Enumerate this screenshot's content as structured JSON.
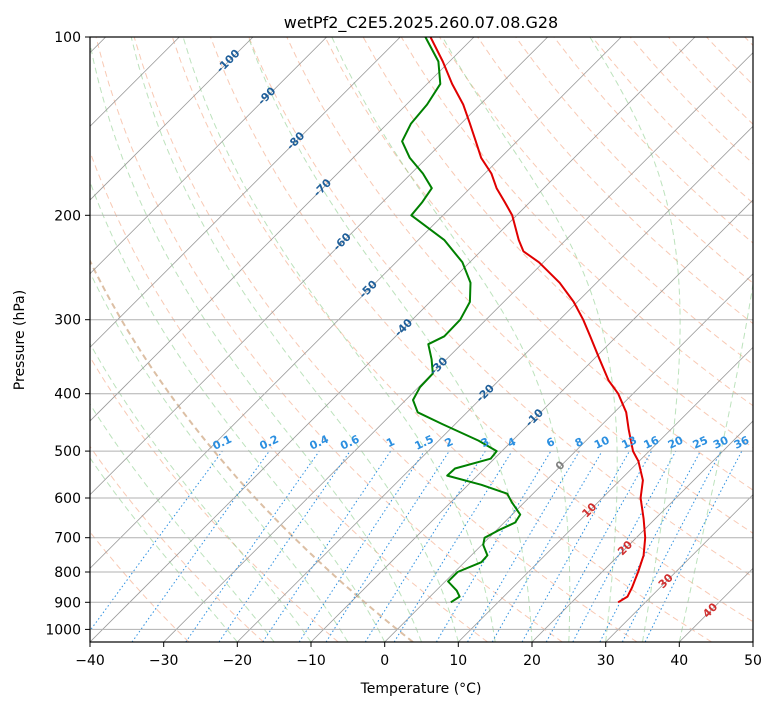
{
  "chart_data": {
    "type": "skew-t",
    "title": "wetPf2_C2E5.2025.260.07.08.G28",
    "xlabel": "Temperature (°C)",
    "ylabel": "Pressure (hPa)",
    "xlim": [
      -40,
      50
    ],
    "ylim": [
      1050,
      100
    ],
    "x_ticks": [
      -40,
      -30,
      -20,
      -10,
      0,
      10,
      20,
      30,
      40,
      50
    ],
    "y_ticks": [
      100,
      200,
      300,
      400,
      500,
      600,
      700,
      800,
      900,
      1000
    ],
    "colors": {
      "temperature": "#e00000",
      "dewpoint": "#008000",
      "isotherm": "#1f5f9a",
      "mixing_ratio": "#2b8fe0",
      "dry_adiabat": "#f4a582",
      "moist_adiabat": "#8fcf8f",
      "grid": "#b0b0b0",
      "isotherm_warm": "#d03030",
      "isotherm_zero": "#808080"
    },
    "isotherm_labels": [
      "-100",
      "-90",
      "-80",
      "-70",
      "-60",
      "-50",
      "-40",
      "-30",
      "-20",
      "-10",
      "0",
      "10",
      "20",
      "30",
      "40"
    ],
    "mixing_ratio_labels": [
      "0.1",
      "0.2",
      "0.4",
      "0.6",
      "1",
      "1.5",
      "2",
      "3",
      "4",
      "6",
      "8",
      "10",
      "13",
      "16",
      "20",
      "25",
      "30",
      "36"
    ],
    "series": [
      {
        "name": "Temperature",
        "points": [
          {
            "p": 900,
            "t": 26.3
          },
          {
            "p": 880,
            "t": 26.8
          },
          {
            "p": 850,
            "t": 26.2
          },
          {
            "p": 800,
            "t": 24.9
          },
          {
            "p": 750,
            "t": 23.4
          },
          {
            "p": 700,
            "t": 21.2
          },
          {
            "p": 650,
            "t": 18.4
          },
          {
            "p": 600,
            "t": 15.2
          },
          {
            "p": 560,
            "t": 13.1
          },
          {
            "p": 520,
            "t": 9.9
          },
          {
            "p": 500,
            "t": 7.8
          },
          {
            "p": 460,
            "t": 4.3
          },
          {
            "p": 430,
            "t": 1.6
          },
          {
            "p": 400,
            "t": -2.0
          },
          {
            "p": 380,
            "t": -5.1
          },
          {
            "p": 350,
            "t": -9.2
          },
          {
            "p": 320,
            "t": -13.6
          },
          {
            "p": 300,
            "t": -16.8
          },
          {
            "p": 280,
            "t": -20.5
          },
          {
            "p": 260,
            "t": -25.0
          },
          {
            "p": 240,
            "t": -30.6
          },
          {
            "p": 230,
            "t": -34.2
          },
          {
            "p": 220,
            "t": -36.4
          },
          {
            "p": 200,
            "t": -40.6
          },
          {
            "p": 190,
            "t": -43.4
          },
          {
            "p": 180,
            "t": -46.4
          },
          {
            "p": 170,
            "t": -49.1
          },
          {
            "p": 160,
            "t": -52.6
          },
          {
            "p": 150,
            "t": -55.6
          },
          {
            "p": 140,
            "t": -58.8
          },
          {
            "p": 130,
            "t": -62.3
          },
          {
            "p": 120,
            "t": -66.6
          },
          {
            "p": 110,
            "t": -70.9
          },
          {
            "p": 100,
            "t": -75.9
          }
        ]
      },
      {
        "name": "Dewpoint",
        "points": [
          {
            "p": 900,
            "t": 3.6
          },
          {
            "p": 880,
            "t": 4.0
          },
          {
            "p": 860,
            "t": 2.8
          },
          {
            "p": 830,
            "t": 0.4
          },
          {
            "p": 800,
            "t": 0.4
          },
          {
            "p": 770,
            "t": 2.3
          },
          {
            "p": 750,
            "t": 2.2
          },
          {
            "p": 720,
            "t": 0.2
          },
          {
            "p": 700,
            "t": -0.6
          },
          {
            "p": 680,
            "t": 0.3
          },
          {
            "p": 660,
            "t": 1.5
          },
          {
            "p": 640,
            "t": 1.1
          },
          {
            "p": 610,
            "t": -1.7
          },
          {
            "p": 590,
            "t": -3.5
          },
          {
            "p": 570,
            "t": -8.2
          },
          {
            "p": 550,
            "t": -14.1
          },
          {
            "p": 535,
            "t": -14.0
          },
          {
            "p": 515,
            "t": -10.5
          },
          {
            "p": 500,
            "t": -10.7
          },
          {
            "p": 480,
            "t": -14.6
          },
          {
            "p": 450,
            "t": -21.8
          },
          {
            "p": 430,
            "t": -26.7
          },
          {
            "p": 410,
            "t": -29.0
          },
          {
            "p": 390,
            "t": -29.8
          },
          {
            "p": 370,
            "t": -29.9
          },
          {
            "p": 350,
            "t": -32.0
          },
          {
            "p": 330,
            "t": -34.5
          },
          {
            "p": 320,
            "t": -33.4
          },
          {
            "p": 300,
            "t": -33.5
          },
          {
            "p": 280,
            "t": -34.6
          },
          {
            "p": 260,
            "t": -37.1
          },
          {
            "p": 240,
            "t": -41.0
          },
          {
            "p": 220,
            "t": -46.5
          },
          {
            "p": 200,
            "t": -54.3
          },
          {
            "p": 190,
            "t": -54.6
          },
          {
            "p": 180,
            "t": -55.2
          },
          {
            "p": 170,
            "t": -58.4
          },
          {
            "p": 160,
            "t": -62.3
          },
          {
            "p": 150,
            "t": -65.6
          },
          {
            "p": 140,
            "t": -66.8
          },
          {
            "p": 130,
            "t": -67.2
          },
          {
            "p": 120,
            "t": -68.2
          },
          {
            "p": 110,
            "t": -71.5
          },
          {
            "p": 100,
            "t": -76.6
          }
        ]
      }
    ]
  }
}
